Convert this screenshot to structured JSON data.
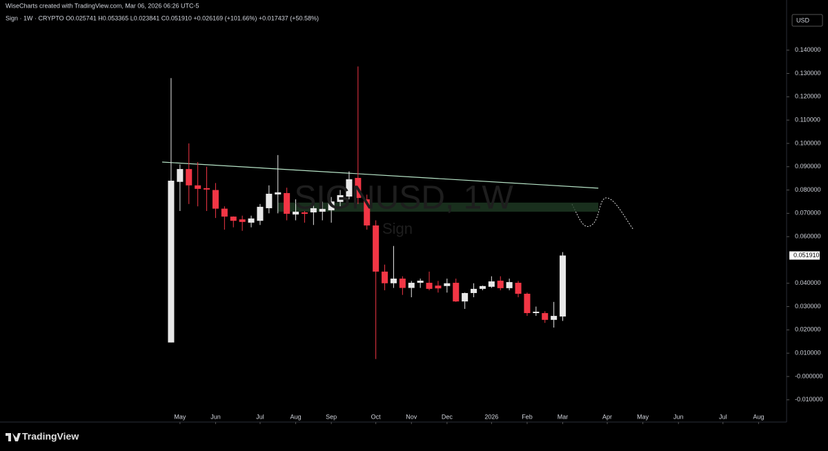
{
  "header": {
    "credit": "WiseCharts created with TradingView.com, Mar 06, 2026 06:26 UTC-5",
    "legend": "Sign · 1W · CRYPTO  O0.025741  H0.053365  L0.023841  C0.051910  +0.026169 (+101.66%)  +0.017437 (+50.58%)",
    "currency_button": "USD"
  },
  "footer": {
    "logo": "TradingView"
  },
  "chart_data": {
    "type": "candlestick",
    "watermark": "SIGNUSD, 1W",
    "watermark_sub": "Sign",
    "x": [
      0,
      1,
      2,
      3,
      4,
      5,
      6,
      7,
      8,
      9,
      10,
      11,
      12,
      13,
      14,
      15,
      16,
      17,
      18,
      19,
      20,
      21,
      22,
      23,
      24,
      25,
      26,
      27,
      28,
      29,
      30,
      31,
      32,
      33,
      34,
      35,
      36,
      37,
      38,
      39,
      40,
      41,
      42,
      43,
      44
    ],
    "open": [
      0.0146,
      0.0835,
      0.089,
      0.082,
      0.0808,
      0.08,
      0.072,
      0.0686,
      0.0674,
      0.066,
      0.0668,
      0.0722,
      0.0781,
      0.0787,
      0.0695,
      0.0704,
      0.0704,
      0.0707,
      0.0713,
      0.0749,
      0.0772,
      0.0852,
      0.076,
      0.0648,
      0.045,
      0.04,
      0.042,
      0.038,
      0.0402,
      0.0402,
      0.039,
      0.0388,
      0.0402,
      0.0322,
      0.0358,
      0.0376,
      0.0385,
      0.0411,
      0.0379,
      0.0402,
      0.0355,
      0.0272,
      0.0272,
      0.0243,
      0.025741
    ],
    "high": [
      0.128,
      0.091,
      0.1,
      0.092,
      0.09,
      0.083,
      0.073,
      0.0687,
      0.069,
      0.069,
      0.074,
      0.082,
      0.095,
      0.081,
      0.076,
      0.071,
      0.074,
      0.075,
      0.077,
      0.08,
      0.088,
      0.133,
      0.078,
      0.067,
      0.048,
      0.056,
      0.043,
      0.041,
      0.042,
      0.045,
      0.041,
      0.042,
      0.042,
      0.036,
      0.04,
      0.039,
      0.043,
      0.043,
      0.042,
      0.041,
      0.036,
      0.03,
      0.028,
      0.032,
      0.053365
    ],
    "low": [
      0.0146,
      0.071,
      0.074,
      0.073,
      0.071,
      0.068,
      0.063,
      0.064,
      0.0625,
      0.064,
      0.065,
      0.07,
      0.07,
      0.067,
      0.067,
      0.066,
      0.065,
      0.067,
      0.066,
      0.073,
      0.076,
      0.074,
      0.063,
      0.0075,
      0.037,
      0.038,
      0.035,
      0.034,
      0.038,
      0.037,
      0.036,
      0.036,
      0.032,
      0.029,
      0.034,
      0.037,
      0.038,
      0.037,
      0.037,
      0.034,
      0.026,
      0.026,
      0.023,
      0.021,
      0.023841
    ],
    "close": [
      0.084,
      0.089,
      0.082,
      0.0805,
      0.0802,
      0.072,
      0.0686,
      0.0668,
      0.0663,
      0.0678,
      0.0728,
      0.0784,
      0.079,
      0.0698,
      0.0707,
      0.0698,
      0.0722,
      0.0719,
      0.0751,
      0.0778,
      0.0846,
      0.0766,
      0.0648,
      0.045,
      0.04,
      0.042,
      0.038,
      0.0402,
      0.0411,
      0.0376,
      0.0378,
      0.04,
      0.0322,
      0.0358,
      0.0376,
      0.0388,
      0.0408,
      0.0379,
      0.0405,
      0.0355,
      0.0272,
      0.0278,
      0.0243,
      0.026,
      0.05191
    ],
    "last_price_label": "0.051910",
    "up_color": "#e8e8e8",
    "down_color": "#f23645",
    "trendline": {
      "x": [
        -1,
        48
      ],
      "y": [
        0.092,
        0.0808
      ],
      "color": "#b7e4c7"
    },
    "zone": {
      "x": [
        12,
        48
      ],
      "y": [
        0.0707,
        0.0746
      ],
      "color": "#1f3b24"
    },
    "xlim": [
      -19.22,
      69.15
    ],
    "xticks": [
      {
        "value": 1,
        "label": "May"
      },
      {
        "value": 5,
        "label": "Jun"
      },
      {
        "value": 10,
        "label": "Jul"
      },
      {
        "value": 14,
        "label": "Aug"
      },
      {
        "value": 18,
        "label": "Sep"
      },
      {
        "value": 23,
        "label": "Oct"
      },
      {
        "value": 27,
        "label": "Nov"
      },
      {
        "value": 31,
        "label": "Dec"
      },
      {
        "value": 36,
        "label": "2026"
      },
      {
        "value": 40,
        "label": "Feb"
      },
      {
        "value": 44,
        "label": "Mar"
      },
      {
        "value": 49,
        "label": "Apr"
      },
      {
        "value": 53,
        "label": "May"
      },
      {
        "value": 57,
        "label": "Jun"
      },
      {
        "value": 62,
        "label": "Jul"
      },
      {
        "value": 66,
        "label": "Aug"
      }
    ],
    "ylim": [
      -0.0148,
      0.1556
    ],
    "yticks": [
      {
        "value": 0.14,
        "label": "0.140000"
      },
      {
        "value": 0.13,
        "label": "0.130000"
      },
      {
        "value": 0.12,
        "label": "0.120000"
      },
      {
        "value": 0.11,
        "label": "0.110000"
      },
      {
        "value": 0.1,
        "label": "0.100000"
      },
      {
        "value": 0.09,
        "label": "0.090000"
      },
      {
        "value": 0.08,
        "label": "0.080000"
      },
      {
        "value": 0.07,
        "label": "0.070000"
      },
      {
        "value": 0.06,
        "label": "0.060000"
      },
      {
        "value": 0.04,
        "label": "0.040000"
      },
      {
        "value": 0.03,
        "label": "0.030000"
      },
      {
        "value": 0.02,
        "label": "0.020000"
      },
      {
        "value": 0.01,
        "label": "0.010000"
      },
      {
        "value": 0,
        "label": "-0.000000"
      },
      {
        "value": -0.01,
        "label": "-0.010000"
      }
    ]
  }
}
